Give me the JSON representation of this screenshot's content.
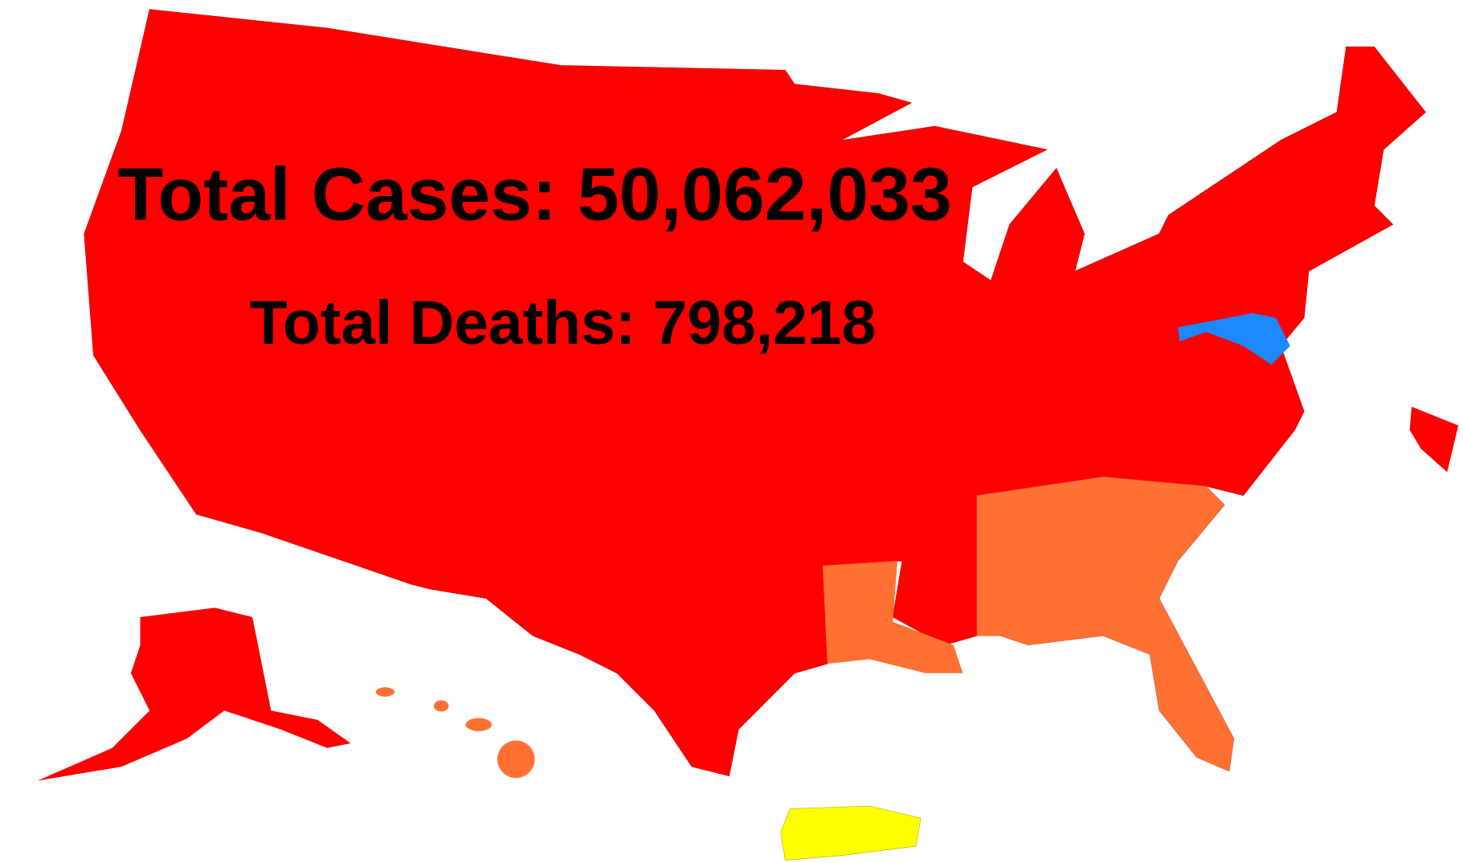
{
  "total_cases": "Total Cases: 50,062,033",
  "total_deaths": "Total Deaths: 798,218"
}
